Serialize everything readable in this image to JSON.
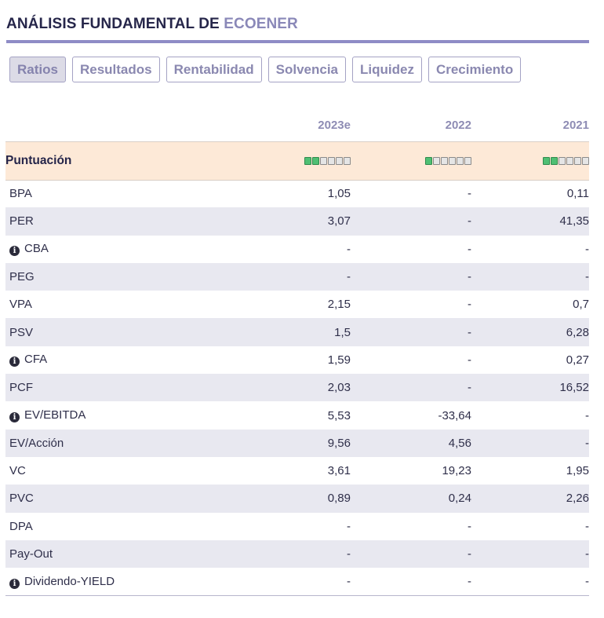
{
  "header": {
    "title_prefix": "ANÁLISIS FUNDAMENTAL DE",
    "company": "ECOENER"
  },
  "tabs": [
    {
      "label": "Ratios",
      "active": true
    },
    {
      "label": "Resultados",
      "active": false
    },
    {
      "label": "Rentabilidad",
      "active": false
    },
    {
      "label": "Solvencia",
      "active": false
    },
    {
      "label": "Liquidez",
      "active": false
    },
    {
      "label": "Crecimiento",
      "active": false
    }
  ],
  "table": {
    "columns": [
      "2023e",
      "2022",
      "2021"
    ],
    "score": {
      "label": "Puntuación",
      "max": 6,
      "values": [
        2,
        1,
        2
      ],
      "on_color": "#4fbf73",
      "off_color": "#e5e5e5"
    },
    "rows": [
      {
        "label": "BPA",
        "info": false,
        "values": [
          "1,05",
          "-",
          "0,11"
        ]
      },
      {
        "label": "PER",
        "info": false,
        "values": [
          "3,07",
          "-",
          "41,35"
        ]
      },
      {
        "label": "CBA",
        "info": true,
        "values": [
          "-",
          "-",
          "-"
        ]
      },
      {
        "label": "PEG",
        "info": false,
        "values": [
          "-",
          "-",
          "-"
        ]
      },
      {
        "label": "VPA",
        "info": false,
        "values": [
          "2,15",
          "-",
          "0,7"
        ]
      },
      {
        "label": "PSV",
        "info": false,
        "values": [
          "1,5",
          "-",
          "6,28"
        ]
      },
      {
        "label": "CFA",
        "info": true,
        "values": [
          "1,59",
          "-",
          "0,27"
        ]
      },
      {
        "label": "PCF",
        "info": false,
        "values": [
          "2,03",
          "-",
          "16,52"
        ]
      },
      {
        "label": "EV/EBITDA",
        "info": true,
        "values": [
          "5,53",
          "-33,64",
          "-"
        ]
      },
      {
        "label": "EV/Acción",
        "info": false,
        "values": [
          "9,56",
          "4,56",
          "-"
        ]
      },
      {
        "label": "VC",
        "info": false,
        "values": [
          "3,61",
          "19,23",
          "1,95"
        ]
      },
      {
        "label": "PVC",
        "info": false,
        "values": [
          "0,89",
          "0,24",
          "2,26"
        ]
      },
      {
        "label": "DPA",
        "info": false,
        "values": [
          "-",
          "-",
          "-"
        ]
      },
      {
        "label": "Pay-Out",
        "info": false,
        "values": [
          "-",
          "-",
          "-"
        ]
      },
      {
        "label": "Dividendo-YIELD",
        "info": true,
        "values": [
          "-",
          "-",
          "-"
        ]
      }
    ]
  },
  "icons": {
    "info": "info-icon",
    "info_glyph": "i"
  }
}
